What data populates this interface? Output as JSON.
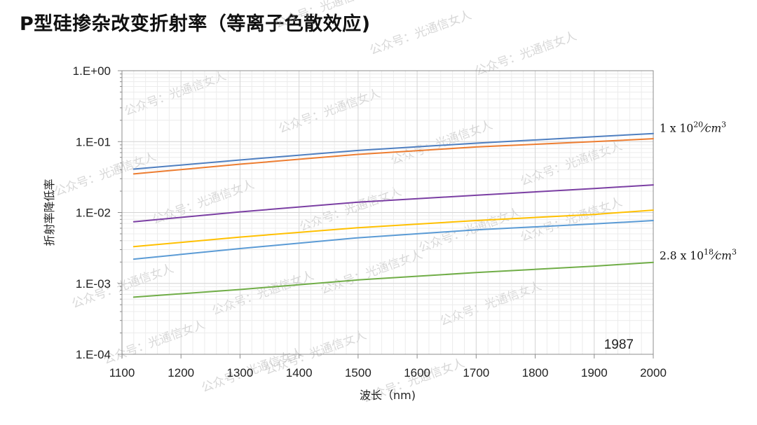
{
  "title": "P型硅掺杂改变折射率（等离子色散效应)",
  "watermark": "公众号：光通信女人",
  "chart_data": {
    "type": "line",
    "xlabel": "波长（nm)",
    "ylabel": "折射率降低率",
    "x_ticks": [
      1100,
      1200,
      1300,
      1400,
      1500,
      1600,
      1700,
      1800,
      1900,
      2000
    ],
    "y_ticks": [
      1,
      0.1,
      0.01,
      0.001,
      0.0001
    ],
    "y_tick_labels": [
      "1.E+00",
      "1.E-01",
      "1.E-02",
      "1.E-03",
      "1.E-04"
    ],
    "xlim": [
      1100,
      2000
    ],
    "ylim": [
      0.0001,
      1
    ],
    "y_scale": "log",
    "grid": true,
    "year_label": "1987",
    "annotations": [
      {
        "base": "1 x 10",
        "exp": "20",
        "unit": "cm",
        "unit_exp": "3",
        "series_index": 0
      },
      {
        "base": "2.8 x 10",
        "exp": "18",
        "unit": "cm",
        "unit_exp": "3",
        "series_index": 5
      }
    ],
    "series": [
      {
        "color": "#4f7fc0",
        "x": [
          1120,
          1300,
          1500,
          1700,
          1900,
          2000
        ],
        "y": [
          0.041,
          0.055,
          0.075,
          0.095,
          0.117,
          0.13
        ]
      },
      {
        "color": "#ed7d31",
        "x": [
          1120,
          1300,
          1500,
          1700,
          1900,
          2000
        ],
        "y": [
          0.035,
          0.048,
          0.066,
          0.084,
          0.1,
          0.11
        ]
      },
      {
        "color": "#7b3fa3",
        "x": [
          1120,
          1300,
          1500,
          1700,
          1900,
          2000
        ],
        "y": [
          0.0074,
          0.0102,
          0.014,
          0.0175,
          0.0218,
          0.0245
        ]
      },
      {
        "color": "#ffc000",
        "x": [
          1120,
          1300,
          1500,
          1700,
          1900,
          2000
        ],
        "y": [
          0.0033,
          0.0045,
          0.0061,
          0.0077,
          0.0094,
          0.0108
        ]
      },
      {
        "color": "#5b9bd5",
        "x": [
          1120,
          1300,
          1500,
          1700,
          1900,
          2000
        ],
        "y": [
          0.0022,
          0.0031,
          0.0044,
          0.0057,
          0.0069,
          0.0077
        ]
      },
      {
        "color": "#70ad47",
        "x": [
          1120,
          1300,
          1500,
          1700,
          1900,
          2000
        ],
        "y": [
          0.00064,
          0.00082,
          0.00112,
          0.00142,
          0.00175,
          0.00198
        ]
      }
    ]
  }
}
